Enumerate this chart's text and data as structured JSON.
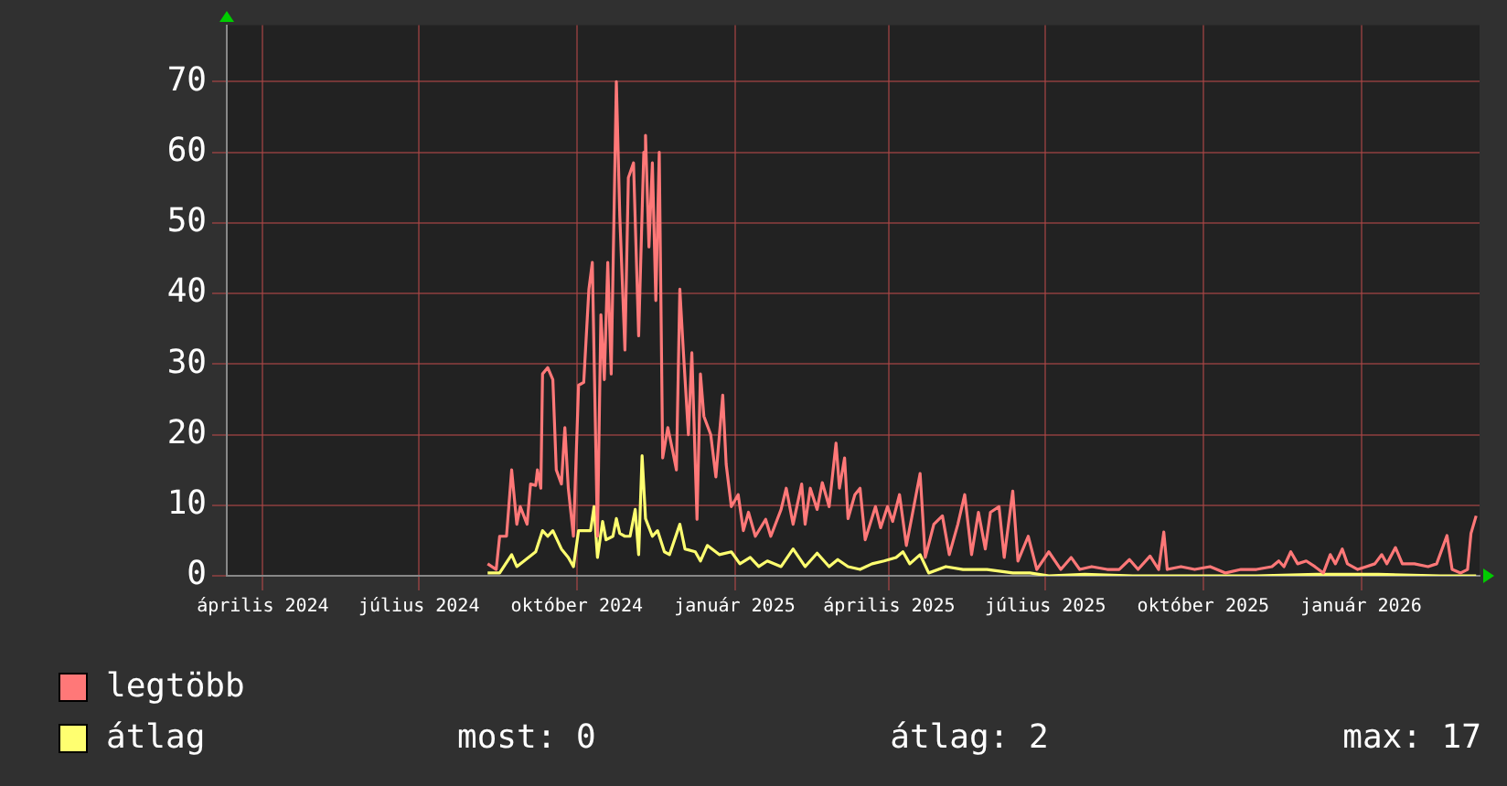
{
  "chart_data": {
    "type": "line",
    "legend": "bottom",
    "grid": true,
    "xlim": [
      "2024-03-11",
      "2026-03-11"
    ],
    "xticks": [
      {
        "value": "2024-04-01",
        "label": "április 2024"
      },
      {
        "value": "2024-07-01",
        "label": "július 2024"
      },
      {
        "value": "2024-10-01",
        "label": "október 2024"
      },
      {
        "value": "2025-01-01",
        "label": "január 2025"
      },
      {
        "value": "2025-04-01",
        "label": "április 2025"
      },
      {
        "value": "2025-07-01",
        "label": "július 2025"
      },
      {
        "value": "2025-10-01",
        "label": "október 2025"
      },
      {
        "value": "2026-01-01",
        "label": "január 2026"
      }
    ],
    "ylim": [
      0,
      78
    ],
    "yticks": [
      0,
      10,
      20,
      30,
      40,
      50,
      60,
      70
    ],
    "annotations": [
      "most: 0",
      "átlag: 2",
      "max: 17"
    ],
    "series": [
      {
        "name": "legtöbb",
        "color": "#ff7878",
        "x": [
          "2024-08-10",
          "2024-08-15",
          "2024-08-17",
          "2024-08-21",
          "2024-08-24",
          "2024-08-27",
          "2024-08-29",
          "2024-09-02",
          "2024-09-04",
          "2024-09-07",
          "2024-09-08",
          "2024-09-10",
          "2024-09-11",
          "2024-09-14",
          "2024-09-17",
          "2024-09-19",
          "2024-09-22",
          "2024-09-24",
          "2024-09-26",
          "2024-09-29",
          "2024-10-02",
          "2024-10-05",
          "2024-10-08",
          "2024-10-10",
          "2024-10-13",
          "2024-10-15",
          "2024-10-17",
          "2024-10-19",
          "2024-10-21",
          "2024-10-24",
          "2024-10-26",
          "2024-10-29",
          "2024-10-31",
          "2024-11-03",
          "2024-11-06",
          "2024-11-09",
          "2024-11-10",
          "2024-11-12",
          "2024-11-14",
          "2024-11-16",
          "2024-11-18",
          "2024-11-20",
          "2024-11-23",
          "2024-11-26",
          "2024-11-28",
          "2024-11-30",
          "2024-12-02",
          "2024-12-05",
          "2024-12-07",
          "2024-12-10",
          "2024-12-12",
          "2024-12-14",
          "2024-12-18",
          "2024-12-21",
          "2024-12-25",
          "2024-12-27",
          "2024-12-30",
          "2025-01-03",
          "2025-01-06",
          "2025-01-09",
          "2025-01-13",
          "2025-01-19",
          "2025-01-22",
          "2025-01-28",
          "2025-01-31",
          "2025-02-04",
          "2025-02-09",
          "2025-02-11",
          "2025-02-14",
          "2025-02-18",
          "2025-02-21",
          "2025-02-25",
          "2025-03-01",
          "2025-03-03",
          "2025-03-06",
          "2025-03-08",
          "2025-03-12",
          "2025-03-15",
          "2025-03-18",
          "2025-03-24",
          "2025-03-27",
          "2025-03-31",
          "2025-04-03",
          "2025-04-07",
          "2025-04-11",
          "2025-04-14",
          "2025-04-19",
          "2025-04-22",
          "2025-04-27",
          "2025-05-02",
          "2025-05-06",
          "2025-05-11",
          "2025-05-15",
          "2025-05-19",
          "2025-05-23",
          "2025-05-27",
          "2025-05-30",
          "2025-06-04",
          "2025-06-07",
          "2025-06-12",
          "2025-06-15",
          "2025-06-21",
          "2025-06-26",
          "2025-07-03",
          "2025-07-10",
          "2025-07-16",
          "2025-07-21",
          "2025-07-28",
          "2025-08-06",
          "2025-08-13",
          "2025-08-19",
          "2025-08-24",
          "2025-08-31",
          "2025-09-05",
          "2025-09-08",
          "2025-09-10",
          "2025-09-18",
          "2025-09-26",
          "2025-10-05",
          "2025-10-14",
          "2025-10-23",
          "2025-11-01",
          "2025-11-10",
          "2025-11-14",
          "2025-11-17",
          "2025-11-21",
          "2025-11-25",
          "2025-11-30",
          "2025-12-05",
          "2025-12-10",
          "2025-12-14",
          "2025-12-17",
          "2025-12-21",
          "2025-12-24",
          "2025-12-30",
          "2026-01-04",
          "2026-01-09",
          "2026-01-13",
          "2026-01-16",
          "2026-01-21",
          "2026-01-25",
          "2026-02-01",
          "2026-02-09",
          "2026-02-14",
          "2026-02-20",
          "2026-02-23",
          "2026-02-28",
          "2026-03-04",
          "2026-03-06",
          "2026-03-09"
        ],
        "values": [
          1.7,
          0.9,
          5.6,
          5.6,
          15,
          7.3,
          9.8,
          7.3,
          13,
          12.8,
          15,
          12.4,
          28.6,
          29.5,
          27.8,
          15,
          13,
          21,
          12.4,
          5.6,
          27,
          27.4,
          40.6,
          44.4,
          5.6,
          37,
          27.8,
          44.4,
          28.6,
          70,
          51,
          32,
          56.4,
          58.5,
          34,
          60,
          62.4,
          46.6,
          58.5,
          39,
          60,
          16.7,
          21,
          17.5,
          15,
          40.6,
          32,
          20,
          31.6,
          8,
          28.6,
          22.6,
          20,
          14,
          25.6,
          15.8,
          9.8,
          11.5,
          6.4,
          9,
          5.6,
          8,
          5.6,
          9.4,
          12.4,
          7.3,
          13,
          7.3,
          12.4,
          9.4,
          13.2,
          9.8,
          18.8,
          12.4,
          16.7,
          8.1,
          11.5,
          12.4,
          5.1,
          9.8,
          6.8,
          9.8,
          7.7,
          11.5,
          4.3,
          8.1,
          14.5,
          2.6,
          7.3,
          8.5,
          3,
          7.3,
          11.5,
          3,
          9,
          3.8,
          9,
          9.8,
          2.6,
          12,
          2.1,
          5.6,
          0.9,
          3.4,
          0.9,
          2.6,
          0.9,
          1.3,
          0.9,
          0.9,
          2.3,
          0.9,
          2.8,
          0.9,
          6.2,
          0.9,
          1.3,
          0.9,
          1.3,
          0.4,
          0.9,
          0.9,
          1.3,
          2.1,
          1.3,
          3.4,
          1.7,
          2.1,
          1.3,
          0.4,
          3,
          1.7,
          3.8,
          1.7,
          0.9,
          1.3,
          1.7,
          3,
          1.7,
          4,
          1.7,
          1.7,
          1.3,
          1.7,
          5.7,
          0.9,
          0.4,
          0.9,
          6,
          8.5
        ]
      },
      {
        "name": "átlag",
        "color": "#ffff70",
        "x": [
          "2024-08-10",
          "2024-08-17",
          "2024-08-24",
          "2024-08-27",
          "2024-09-07",
          "2024-09-11",
          "2024-09-14",
          "2024-09-17",
          "2024-09-22",
          "2024-09-26",
          "2024-09-29",
          "2024-10-02",
          "2024-10-09",
          "2024-10-11",
          "2024-10-13",
          "2024-10-16",
          "2024-10-18",
          "2024-10-22",
          "2024-10-24",
          "2024-10-26",
          "2024-10-29",
          "2024-11-01",
          "2024-11-04",
          "2024-11-06",
          "2024-11-08",
          "2024-11-10",
          "2024-11-14",
          "2024-11-17",
          "2024-11-21",
          "2024-11-24",
          "2024-11-30",
          "2024-12-03",
          "2024-12-09",
          "2024-12-12",
          "2024-12-16",
          "2024-12-23",
          "2024-12-30",
          "2025-01-04",
          "2025-01-10",
          "2025-01-15",
          "2025-01-20",
          "2025-01-28",
          "2025-02-04",
          "2025-02-11",
          "2025-02-18",
          "2025-02-25",
          "2025-03-02",
          "2025-03-08",
          "2025-03-15",
          "2025-03-22",
          "2025-03-29",
          "2025-04-05",
          "2025-04-09",
          "2025-04-13",
          "2025-04-19",
          "2025-04-24",
          "2025-05-04",
          "2025-05-14",
          "2025-05-28",
          "2025-06-12",
          "2025-06-22",
          "2025-07-03",
          "2025-07-24",
          "2025-08-21",
          "2025-09-26",
          "2025-11-01",
          "2025-12-06",
          "2026-01-11",
          "2026-02-16",
          "2026-03-09"
        ],
        "values": [
          0.4,
          0.4,
          3,
          1.3,
          3.4,
          6.4,
          5.6,
          6.4,
          3.8,
          2.6,
          1.3,
          6.4,
          6.4,
          9.8,
          2.6,
          7.7,
          5.1,
          5.6,
          8.1,
          6,
          5.6,
          5.6,
          9.4,
          3,
          17,
          8.1,
          5.6,
          6.4,
          3.4,
          3,
          7.3,
          3.8,
          3.4,
          2.1,
          4.3,
          3,
          3.4,
          1.7,
          2.6,
          1.3,
          2.1,
          1.3,
          3.8,
          1.3,
          3.2,
          1.3,
          2.3,
          1.3,
          0.9,
          1.7,
          2.1,
          2.6,
          3.4,
          1.7,
          3,
          0.4,
          1.3,
          0.9,
          0.9,
          0.4,
          0.4,
          0,
          0.2,
          0,
          0,
          0,
          0.2,
          0.2,
          0,
          0
        ]
      }
    ]
  }
}
